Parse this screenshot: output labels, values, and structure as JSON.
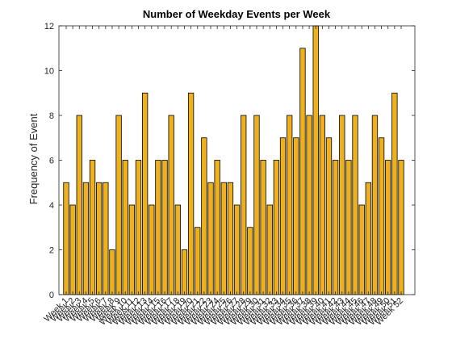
{
  "chart_data": {
    "type": "bar",
    "title": "Number of Weekday Events per Week",
    "xlabel": "",
    "ylabel": "Frequency of Event",
    "ylim": [
      0,
      12
    ],
    "yticks": [
      0,
      2,
      4,
      6,
      8,
      10,
      12
    ],
    "bar_color": "#EDB120",
    "edge_color": "#000000",
    "categories": [
      "Week 1",
      "Week 2",
      "Week 3",
      "Week 4",
      "Week 5",
      "Week 6",
      "Week 7",
      "Week 8",
      "Week 9",
      "Week 10",
      "Week 11",
      "Week 12",
      "Week 13",
      "Week 14",
      "Week 15",
      "Week 16",
      "Week 17",
      "Week 18",
      "Week 19",
      "Week 20",
      "Week 21",
      "Week 22",
      "Week 23",
      "Week 24",
      "Week 25",
      "Week 26",
      "Week 27",
      "Week 28",
      "Week 29",
      "Week 30",
      "Week 31",
      "Week 32",
      "Week 33",
      "Week 34",
      "Week 35",
      "Week 36",
      "Week 37",
      "Week 38",
      "Week 39",
      "Week 40",
      "Week 41",
      "Week 42",
      "Week 43",
      "Week 44",
      "Week 45",
      "Week 46",
      "Week 47",
      "Week 48",
      "Week 49",
      "Week 50",
      "Week 51",
      "Week 52"
    ],
    "values": [
      5,
      4,
      8,
      5,
      6,
      5,
      5,
      2,
      8,
      6,
      4,
      6,
      9,
      4,
      6,
      6,
      8,
      4,
      2,
      9,
      3,
      7,
      5,
      6,
      5,
      5,
      4,
      8,
      3,
      8,
      6,
      4,
      6,
      7,
      8,
      7,
      11,
      8,
      12,
      8,
      7,
      6,
      8,
      6,
      8,
      4,
      5,
      8,
      7,
      6,
      9,
      6
    ]
  }
}
